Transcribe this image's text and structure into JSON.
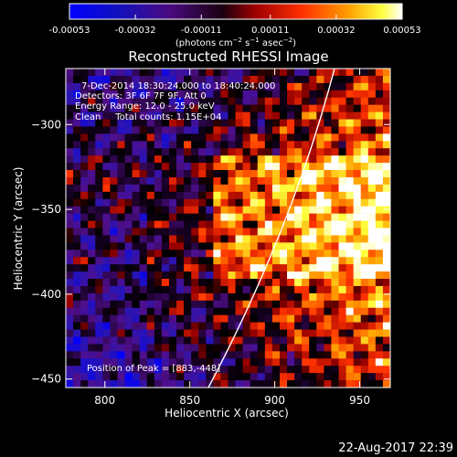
{
  "colorbar": {
    "tick_labels": [
      "-0.00053",
      "-0.00032",
      "-0.00011",
      "0.00011",
      "0.00032",
      "0.00053"
    ],
    "tick_values": [
      -0.00053,
      -0.00032,
      -0.00011,
      0.00011,
      0.00032,
      0.00053
    ],
    "range": [
      -0.00053,
      0.00053
    ],
    "units_prefix": "(photons cm",
    "units_exp1": "−2",
    "units_mid": " s",
    "units_exp2": "−1",
    "units_mid2": " asec",
    "units_exp3": "−2",
    "units_suffix": ")"
  },
  "image": {
    "title": "Reconstructed RHESSI Image",
    "info_lines": [
      "7-Dec-2014 18:30:24.000 to 18:40:24.000",
      "Detectors: 3F 6F 7F 9F, Att 0",
      "Energy Range: 12.0 - 25.0 keV",
      "Clean     Total counts: 1.15E+04"
    ],
    "peak_label": "Position of Peak = [883,-448]",
    "peak_position": [
      883,
      -448
    ],
    "limb": "solid white curve",
    "colormap": [
      "#0000ff",
      "#4b0082",
      "#000000",
      "#ff0000",
      "#ffa500",
      "#ffff00",
      "#ffffff"
    ]
  },
  "axes": {
    "xlabel": "Heliocentric X (arcsec)",
    "ylabel": "Heliocentric Y (arcsec)",
    "xlim": [
      777,
      968
    ],
    "ylim": [
      -455,
      -267
    ],
    "x_ticks": [
      800,
      850,
      900,
      950
    ],
    "y_ticks": [
      -300,
      -350,
      -400,
      -450
    ],
    "x_tick_labels": [
      "800",
      "850",
      "900",
      "950"
    ],
    "y_tick_labels": [
      "-300",
      "-350",
      "-400",
      "-450"
    ]
  },
  "footer": {
    "timestamp": "22-Aug-2017 22:39"
  }
}
